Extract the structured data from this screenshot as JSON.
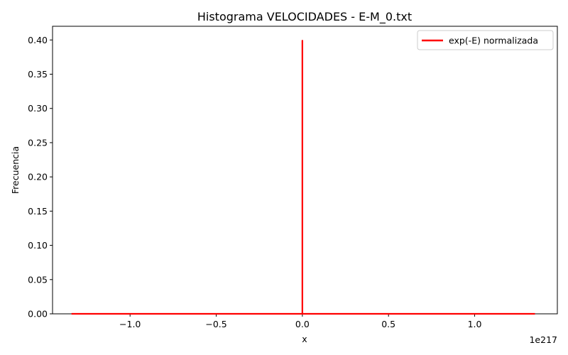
{
  "chart_data": {
    "type": "line",
    "title": "Histograma VELOCIDADES - E-M_0.txt",
    "xlabel": "x",
    "ylabel": "Frecuencia",
    "x_offset_text": "1e217",
    "xlim": [
      -1.45,
      1.48
    ],
    "ylim": [
      0,
      0.42
    ],
    "x_ticks": [
      -1.0,
      -0.5,
      0.0,
      0.5,
      1.0
    ],
    "x_tick_labels": [
      "−1.0",
      "−0.5",
      "0.0",
      "0.5",
      "1.0"
    ],
    "y_ticks": [
      0,
      0.05,
      0.1,
      0.15,
      0.2,
      0.25,
      0.3,
      0.35,
      0.4
    ],
    "y_tick_labels": [
      "0.00",
      "0.05",
      "0.10",
      "0.15",
      "0.20",
      "0.25",
      "0.30",
      "0.35",
      "0.40"
    ],
    "grid": false,
    "legend_position": "top-right",
    "series": [
      {
        "name": "exp(-E) normalizada",
        "color": "#ff0000",
        "x": [
          -1.34,
          -0.3,
          0.0,
          0.0,
          0.0,
          0.3,
          1.35
        ],
        "y": [
          0.0,
          0.0,
          0.0,
          0.399,
          0.0,
          0.0,
          0.0
        ]
      }
    ]
  }
}
